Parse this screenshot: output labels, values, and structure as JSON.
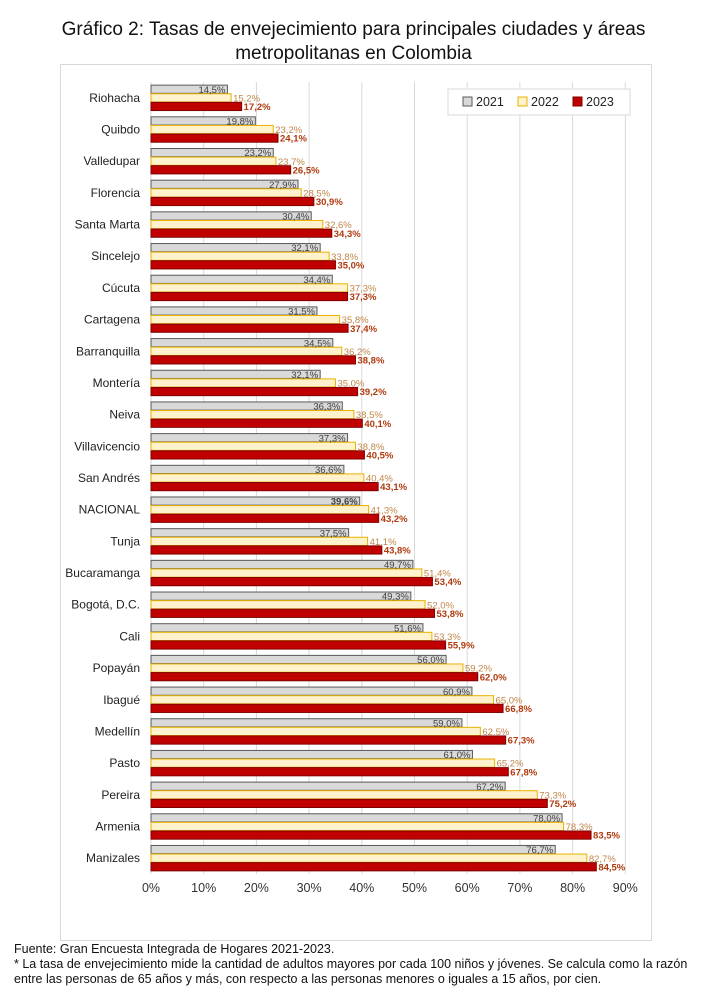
{
  "title_line1": "Gráfico 2: Tasas de envejecimiento para principales ciudades y áreas",
  "title_line2": "metropolitanas en Colombia",
  "footer": {
    "source": "Fuente: Gran Encuesta Integrada de Hogares 2021-2023.",
    "note": "* La tasa de envejecimiento mide la cantidad de adultos mayores por cada 100 niños y jóvenes. Se calcula como la razón entre las personas de 65 años y más, con respecto a las personas menores o iguales a 15 años, por cien."
  },
  "colors": {
    "s2021_fill": "#d9d9d9",
    "s2021_stroke": "#595959",
    "s2022_fill": "#fff2cc",
    "s2022_stroke": "#e8b200",
    "s2023_fill": "#c00000",
    "s2023_stroke": "#7f0000",
    "label2021": "#404040",
    "label2022": "#c0864a",
    "label2023": "#b03a0e",
    "grid": "#d9d9d9"
  },
  "chart_data": {
    "type": "bar",
    "orientation": "horizontal",
    "title": "Gráfico 2: Tasas de envejecimiento para principales ciudades y áreas metropolitanas en Colombia",
    "legend_position": "top-right",
    "xlim": [
      0,
      90
    ],
    "xticks": [
      0,
      10,
      20,
      30,
      40,
      50,
      60,
      70,
      80,
      90
    ],
    "xtick_labels": [
      "0%",
      "10%",
      "20%",
      "30%",
      "40%",
      "50%",
      "60%",
      "70%",
      "80%",
      "90%"
    ],
    "grid": true,
    "categories": [
      "Riohacha",
      "Quibdo",
      "Valledupar",
      "Florencia",
      "Santa Marta",
      "Sincelejo",
      "Cúcuta",
      "Cartagena",
      "Barranquilla",
      "Montería",
      "Neiva",
      "Villavicencio",
      "San Andrés",
      "NACIONAL",
      "Tunja",
      "Bucaramanga",
      "Bogotá, D.C.",
      "Cali",
      "Popayán",
      "Ibagué",
      "Medellín",
      "Pasto",
      "Pereira",
      "Armenia",
      "Manizales"
    ],
    "series": [
      {
        "name": "2021",
        "values": [
          14.5,
          19.8,
          23.2,
          27.9,
          30.4,
          32.1,
          34.4,
          31.5,
          34.5,
          32.1,
          36.3,
          37.3,
          36.6,
          39.6,
          37.5,
          49.7,
          49.3,
          51.6,
          56.0,
          60.9,
          59.0,
          61.0,
          67.2,
          78.0,
          76.7
        ],
        "labels": [
          "14,5%",
          "19,8%",
          "23,2%",
          "27,9%",
          "30,4%",
          "32,1%",
          "34,4%",
          "31,5%",
          "34,5%",
          "32,1%",
          "36,3%",
          "37,3%",
          "36,6%",
          "39,6%",
          "37,5%",
          "49,7%",
          "49,3%",
          "51,6%",
          "56,0%",
          "60,9%",
          "59,0%",
          "61,0%",
          "67,2%",
          "78,0%",
          "76,7%"
        ]
      },
      {
        "name": "2022",
        "values": [
          15.2,
          23.2,
          23.7,
          28.5,
          32.6,
          33.8,
          37.3,
          35.8,
          36.2,
          35.0,
          38.5,
          38.8,
          40.4,
          41.3,
          41.1,
          51.4,
          52.0,
          53.3,
          59.2,
          65.0,
          62.5,
          65.2,
          73.3,
          78.3,
          82.7
        ],
        "labels": [
          "15,2%",
          "23,2%",
          "23,7%",
          "28,5%",
          "32,6%",
          "33,8%",
          "37,3%",
          "35,8%",
          "36,2%",
          "35,0%",
          "38,5%",
          "38,8%",
          "40,4%",
          "41,3%",
          "41,1%",
          "51,4%",
          "52,0%",
          "53,3%",
          "59,2%",
          "65,0%",
          "62,5%",
          "65,2%",
          "73,3%",
          "78,3%",
          "82,7%"
        ]
      },
      {
        "name": "2023",
        "values": [
          17.2,
          24.1,
          26.5,
          30.9,
          34.3,
          35.0,
          37.3,
          37.4,
          38.8,
          39.2,
          40.1,
          40.5,
          43.1,
          43.2,
          43.8,
          53.4,
          53.8,
          55.9,
          62.0,
          66.8,
          67.3,
          67.8,
          75.2,
          83.5,
          84.5
        ],
        "labels": [
          "17,2%",
          "24,1%",
          "26,5%",
          "30,9%",
          "34,3%",
          "35,0%",
          "37,3%",
          "37,4%",
          "38,8%",
          "39,2%",
          "40,1%",
          "40,5%",
          "43,1%",
          "43,2%",
          "43,8%",
          "53,4%",
          "53,8%",
          "55,9%",
          "62,0%",
          "66,8%",
          "67,3%",
          "67,8%",
          "75,2%",
          "83,5%",
          "84,5%"
        ]
      }
    ]
  }
}
